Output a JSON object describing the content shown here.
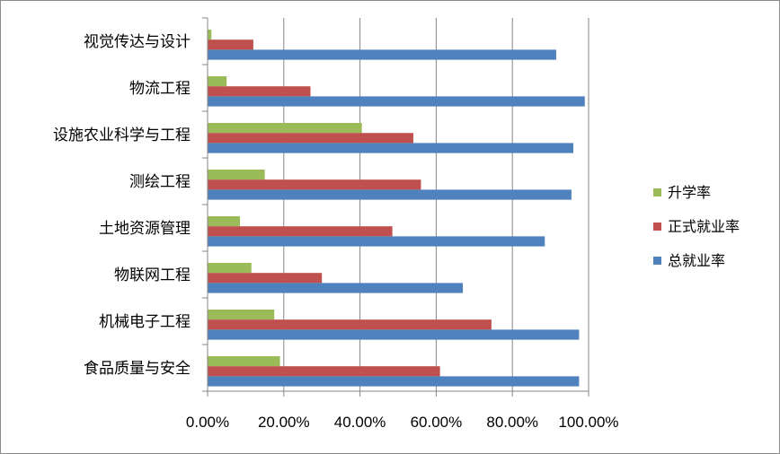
{
  "chart_data": {
    "type": "bar",
    "orientation": "horizontal",
    "categories": [
      "视觉传达与设计",
      "物流工程",
      "设施农业科学与工程",
      "测绘工程",
      "土地资源管理",
      "物联网工程",
      "机械电子工程",
      "食品质量与安全"
    ],
    "series": [
      {
        "name": "升学率",
        "color": "#9BBB59",
        "values": [
          0.01,
          0.05,
          0.405,
          0.15,
          0.085,
          0.115,
          0.175,
          0.19
        ]
      },
      {
        "name": "正式就业率",
        "color": "#C0504D",
        "values": [
          0.12,
          0.27,
          0.54,
          0.56,
          0.485,
          0.3,
          0.745,
          0.61
        ]
      },
      {
        "name": "总就业率",
        "color": "#4F81BD",
        "values": [
          0.915,
          0.99,
          0.96,
          0.955,
          0.885,
          0.67,
          0.975,
          0.975
        ]
      }
    ],
    "xlim": [
      0,
      1.0
    ],
    "x_ticks": [
      "0.00%",
      "20.00%",
      "40.00%",
      "60.00%",
      "80.00%",
      "100.00%"
    ],
    "grid": "vertical major gridlines",
    "legend_position": "right",
    "legend_order": [
      "升学率",
      "正式就业率",
      "总就业率"
    ],
    "title": "",
    "xlabel": "",
    "ylabel": ""
  }
}
